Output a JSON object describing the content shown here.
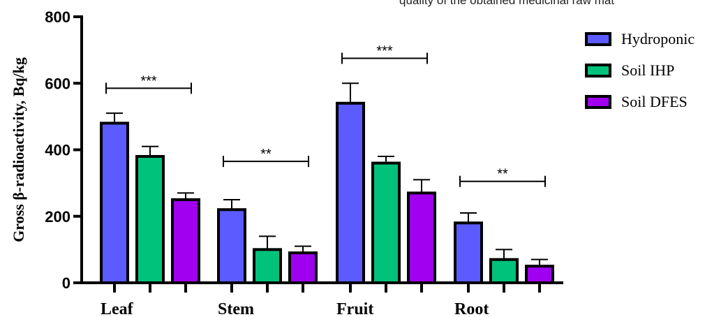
{
  "header_note": "quality of the obtained medicinal raw mat",
  "chart_data": {
    "type": "bar",
    "title": "",
    "xlabel": "",
    "ylabel": "Gross β-radioactivity, Bq/kg",
    "ylim": [
      0,
      800
    ],
    "yticks": [
      0,
      200,
      400,
      600,
      800
    ],
    "categories": [
      "Leaf",
      "Stem",
      "Fruit",
      "Root"
    ],
    "series": [
      {
        "name": "Hydroponic",
        "color": "#5b5bff",
        "values": [
          480,
          220,
          540,
          180
        ],
        "errors": [
          30,
          30,
          60,
          30
        ]
      },
      {
        "name": "Soil IHP",
        "color": "#00c27a",
        "values": [
          380,
          100,
          360,
          70
        ],
        "errors": [
          30,
          40,
          20,
          30
        ]
      },
      {
        "name": "Soil DFES",
        "color": "#a000ef",
        "values": [
          250,
          90,
          270,
          50
        ],
        "errors": [
          20,
          20,
          40,
          20
        ]
      }
    ],
    "significance": [
      {
        "category": "Leaf",
        "label": "***",
        "y": 585
      },
      {
        "category": "Stem",
        "label": "**",
        "y": 365
      },
      {
        "category": "Fruit",
        "label": "***",
        "y": 675
      },
      {
        "category": "Root",
        "label": "**",
        "y": 305
      }
    ],
    "legend_position": "top-right",
    "grid": false
  }
}
